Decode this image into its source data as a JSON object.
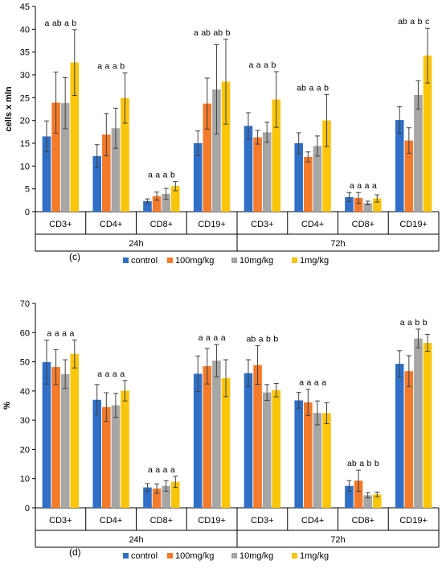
{
  "colors": {
    "control": "#2f6fc6",
    "100mg/kg": "#f47a2c",
    "10mg/kg": "#a6a6a6",
    "1mg/kg": "#fbc50a",
    "axis": "#000000",
    "error_bar": "#404040"
  },
  "chart_data": [
    {
      "type": "bar",
      "panel_label": "(c)",
      "ylabel": "cells x mln",
      "ylim": [
        0,
        45
      ],
      "yticks": [
        0,
        5,
        10,
        15,
        20,
        25,
        30,
        35,
        40,
        45
      ],
      "grid": false,
      "legend_position": "bottom",
      "categories": [
        "CD3+",
        "CD4+",
        "CD8+",
        "CD19+",
        "CD3+",
        "CD4+",
        "CD8+",
        "CD19+"
      ],
      "time_groups": [
        {
          "label": "24h",
          "span": [
            0,
            3
          ]
        },
        {
          "label": "72h",
          "span": [
            4,
            7
          ]
        }
      ],
      "series": [
        {
          "name": "control",
          "values": [
            16.5,
            12.2,
            2.3,
            15.0,
            18.8,
            15.0,
            3.2,
            20.1
          ],
          "errors": [
            3.4,
            2.5,
            0.5,
            2.7,
            2.9,
            2.3,
            1.0,
            2.9
          ]
        },
        {
          "name": "100mg/kg",
          "values": [
            23.9,
            16.9,
            3.4,
            23.7,
            16.3,
            12.0,
            3.0,
            15.6
          ],
          "errors": [
            6.7,
            4.6,
            0.9,
            5.6,
            1.5,
            1.1,
            1.2,
            2.8
          ]
        },
        {
          "name": "10mg/kg",
          "values": [
            23.8,
            18.3,
            3.9,
            26.8,
            17.4,
            14.4,
            1.9,
            25.6
          ],
          "errors": [
            5.6,
            4.4,
            1.2,
            9.8,
            2.2,
            2.2,
            0.4,
            3.1
          ]
        },
        {
          "name": "1mg/kg",
          "values": [
            32.7,
            24.9,
            5.6,
            28.5,
            24.6,
            20.0,
            2.9,
            34.2
          ],
          "errors": [
            7.2,
            5.5,
            1.0,
            9.3,
            6.1,
            5.7,
            0.8,
            6.0
          ]
        }
      ],
      "annotations": [
        [
          "a",
          "ab",
          "a",
          "b"
        ],
        [
          "a",
          "a",
          "a",
          "b"
        ],
        [
          "a",
          "a",
          "a",
          "b"
        ],
        [
          "a",
          "ab",
          "ab",
          "b"
        ],
        [
          "a",
          "a",
          "a",
          "b"
        ],
        [
          "ab",
          "a",
          "a",
          "b"
        ],
        [
          "a",
          "a",
          "a",
          "a"
        ],
        [
          "ab",
          "a",
          "b",
          "c"
        ]
      ]
    },
    {
      "type": "bar",
      "panel_label": "(d)",
      "ylabel": "%",
      "ylim": [
        0,
        70
      ],
      "yticks": [
        0,
        10,
        20,
        30,
        40,
        50,
        60,
        70
      ],
      "grid": false,
      "legend_position": "bottom",
      "categories": [
        "CD3+",
        "CD4+",
        "CD8+",
        "CD19+",
        "CD3+",
        "CD4+",
        "CD8+",
        "CD19+"
      ],
      "time_groups": [
        {
          "label": "24h",
          "span": [
            0,
            3
          ]
        },
        {
          "label": "72h",
          "span": [
            4,
            7
          ]
        }
      ],
      "series": [
        {
          "name": "control",
          "values": [
            49.9,
            37.0,
            7.0,
            45.9,
            46.1,
            36.8,
            7.5,
            49.3
          ],
          "errors": [
            7.5,
            5.2,
            1.3,
            6.1,
            4.6,
            2.7,
            1.8,
            4.5
          ]
        },
        {
          "name": "100mg/kg",
          "values": [
            48.2,
            34.5,
            6.6,
            48.5,
            48.9,
            36.1,
            9.3,
            46.8
          ],
          "errors": [
            6.0,
            4.9,
            1.6,
            6.1,
            6.6,
            4.5,
            3.6,
            5.3
          ]
        },
        {
          "name": "10mg/kg",
          "values": [
            45.8,
            35.1,
            7.5,
            50.4,
            39.5,
            32.5,
            4.3,
            58.0
          ],
          "errors": [
            4.9,
            4.1,
            1.8,
            5.5,
            2.7,
            4.1,
            0.9,
            3.2
          ]
        },
        {
          "name": "1mg/kg",
          "values": [
            52.7,
            40.1,
            8.9,
            44.4,
            40.3,
            32.4,
            4.6,
            56.5
          ],
          "errors": [
            4.8,
            3.5,
            1.9,
            6.3,
            2.3,
            3.6,
            0.8,
            2.9
          ]
        }
      ],
      "annotations": [
        [
          "a",
          "a",
          "a",
          "a"
        ],
        [
          "a",
          "a",
          "a",
          "a"
        ],
        [
          "a",
          "a",
          "a",
          "a"
        ],
        [
          "a",
          "a",
          "a",
          "a"
        ],
        [
          "ab",
          "a",
          "b",
          "b"
        ],
        [
          "a",
          "a",
          "a",
          "a"
        ],
        [
          "ab",
          "a",
          "b",
          "b"
        ],
        [
          "a",
          "a",
          "b",
          "b"
        ]
      ]
    }
  ]
}
